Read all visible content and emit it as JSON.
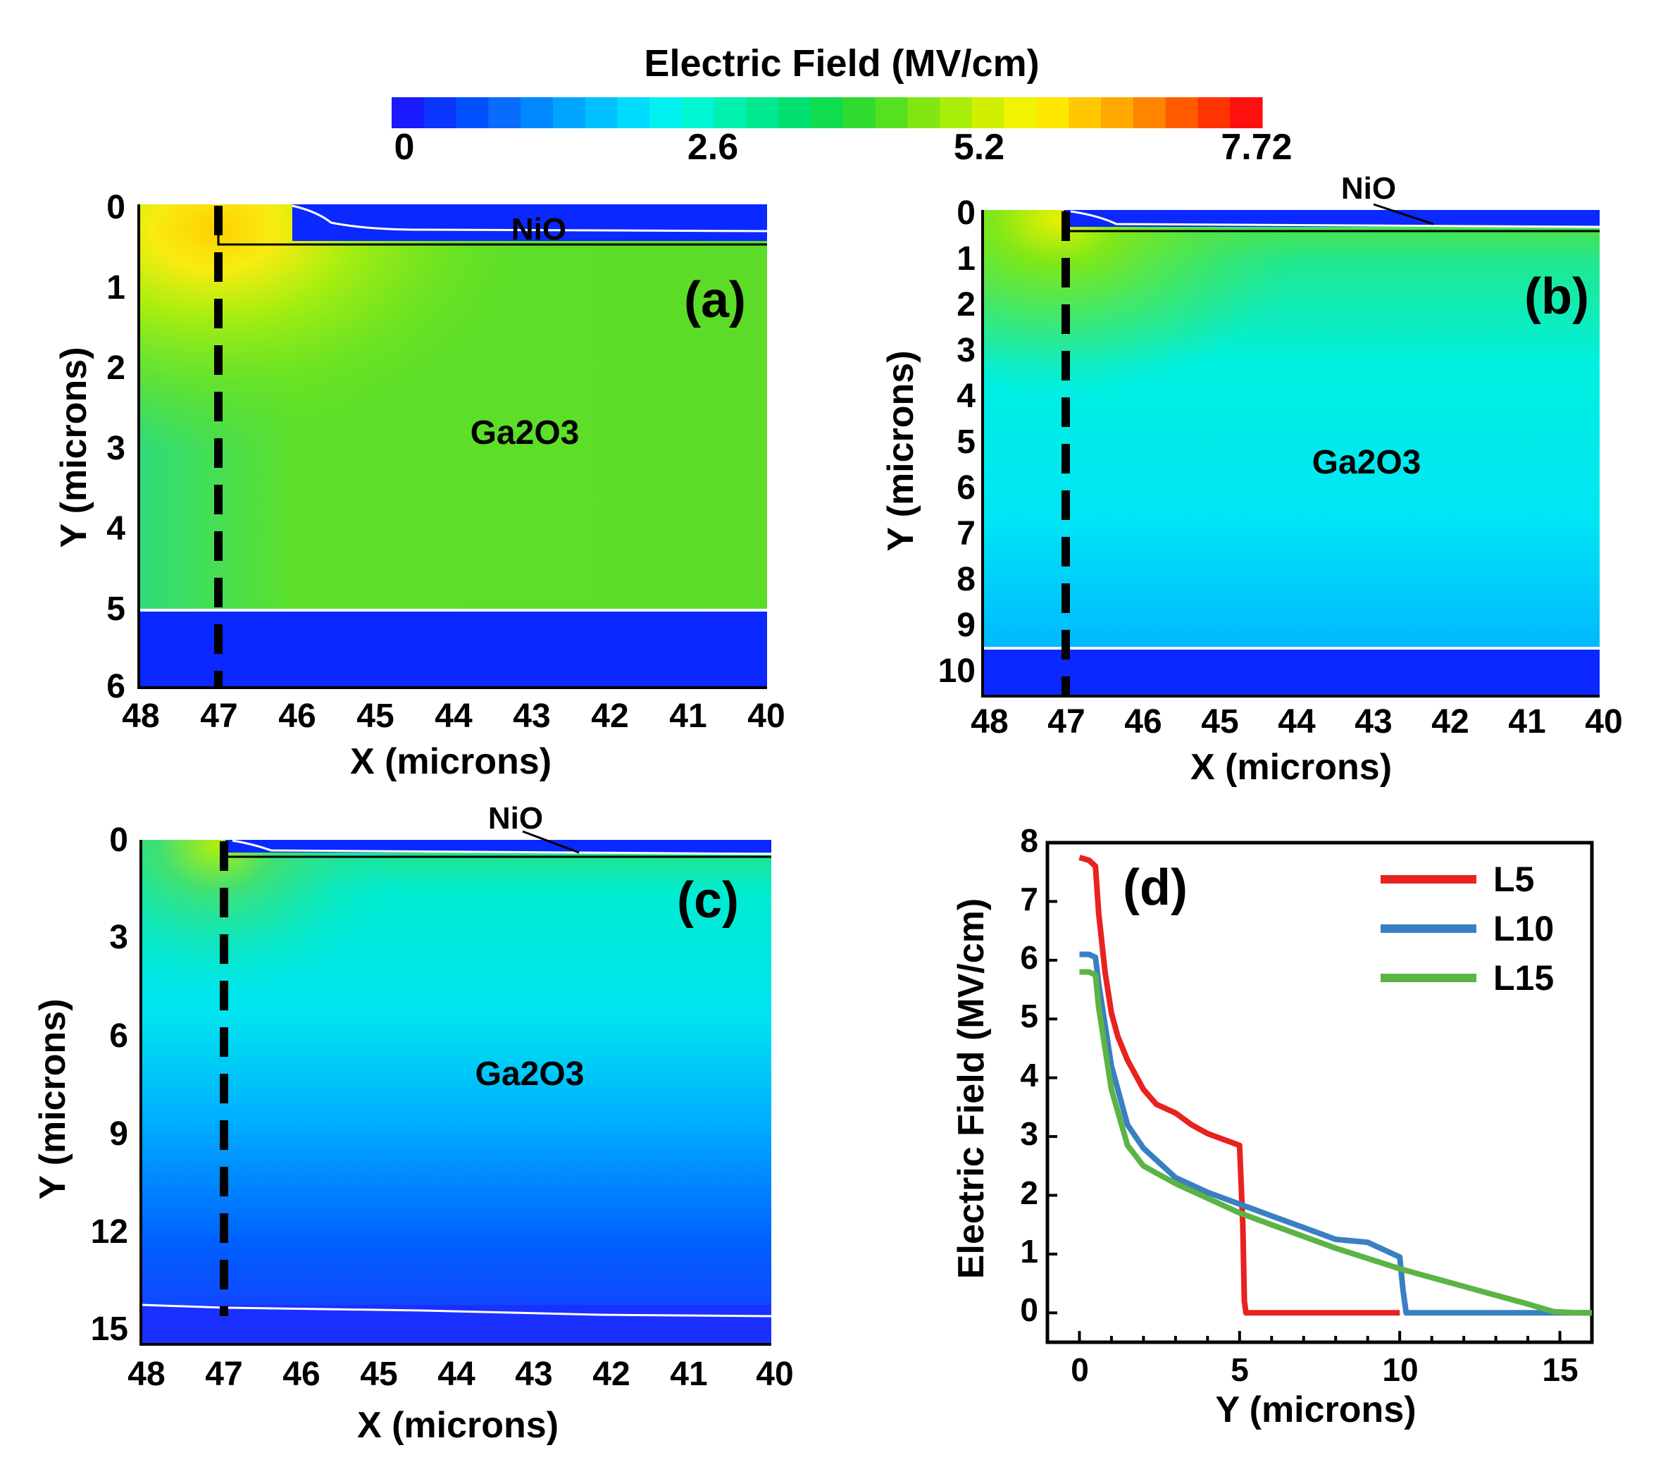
{
  "colorbar": {
    "title": "Electric Field (MV/cm)",
    "ticks": [
      "0",
      "2.6",
      "5.2",
      "7.72"
    ],
    "colors": [
      "#1a1aff",
      "#0a35ff",
      "#0050ff",
      "#0a6cff",
      "#0088ff",
      "#00a4ff",
      "#00c0ff",
      "#00dcff",
      "#00f2f0",
      "#00f5d2",
      "#00f0b0",
      "#00e890",
      "#00e070",
      "#10dc50",
      "#30dc30",
      "#55e020",
      "#80e810",
      "#a8ee08",
      "#d0f000",
      "#f0f400",
      "#ffe800",
      "#ffc800",
      "#ffa800",
      "#ff8400",
      "#ff5c00",
      "#ff3400",
      "#ff1010"
    ]
  },
  "chart_data": [
    {
      "type": "heatmap",
      "panel_label": "(a)",
      "xlabel": "X (microns)",
      "ylabel": "Y (microns)",
      "x_ticks": [
        "48",
        "47",
        "46",
        "45",
        "44",
        "43",
        "42",
        "41",
        "40"
      ],
      "y_ticks": [
        "0",
        "1",
        "2",
        "3",
        "4",
        "5",
        "6"
      ],
      "xlim": [
        48,
        40
      ],
      "ylim": [
        0,
        6
      ],
      "material_labels": [
        "NiO",
        "Ga2O3"
      ],
      "dashed_cut_x": 47,
      "nio_thickness": 0.5,
      "ga2o3_bottom": 5.05,
      "peak_field_color": "#ffd000",
      "bulk_color": "#5ee02a",
      "substrate_color": "#0a28ff",
      "nio_color": "#0a28ff"
    },
    {
      "type": "heatmap",
      "panel_label": "(b)",
      "xlabel": "X (microns)",
      "ylabel": "Y (microns)",
      "x_ticks": [
        "48",
        "47",
        "46",
        "45",
        "44",
        "43",
        "42",
        "41",
        "40"
      ],
      "y_ticks": [
        "0",
        "1",
        "2",
        "3",
        "4",
        "5",
        "6",
        "7",
        "8",
        "9",
        "10"
      ],
      "xlim": [
        48,
        40
      ],
      "ylim": [
        0,
        10.5
      ],
      "material_labels": [
        "NiO",
        "Ga2O3"
      ],
      "dashed_cut_x": 47,
      "nio_thickness": 0.4,
      "ga2o3_bottom": 9.55,
      "top_color": "#60e028",
      "bulk_color": "#00f0e8",
      "bottom_color": "#00c8ff",
      "substrate_color": "#0a28ff",
      "nio_color": "#0a28ff"
    },
    {
      "type": "heatmap",
      "panel_label": "(c)",
      "xlabel": "X (microns)",
      "ylabel": "Y (microns)",
      "x_ticks": [
        "48",
        "47",
        "46",
        "45",
        "44",
        "43",
        "42",
        "41",
        "40"
      ],
      "y_ticks": [
        "0",
        "3",
        "6",
        "9",
        "12",
        "15"
      ],
      "xlim": [
        48,
        40
      ],
      "ylim": [
        0,
        15.5
      ],
      "material_labels": [
        "NiO",
        "Ga2O3"
      ],
      "dashed_cut_x": 47,
      "nio_thickness": 0.4,
      "ga2o3_bottom": 14.6,
      "top_color": "#30e060",
      "mid_color": "#00e8e0",
      "bottom_color": "#0050ff",
      "substrate_color": "#1a30ff",
      "nio_color": "#0a28ff"
    },
    {
      "type": "line",
      "panel_label": "(d)",
      "xlabel": "Y (microns)",
      "ylabel": "Electric Field (MV/cm)",
      "x_ticks": [
        "0",
        "5",
        "10",
        "15"
      ],
      "y_ticks": [
        "0",
        "1",
        "2",
        "3",
        "4",
        "5",
        "6",
        "7",
        "8"
      ],
      "xlim": [
        -1,
        16
      ],
      "ylim": [
        -0.5,
        8
      ],
      "legend_position": "top-right",
      "series": [
        {
          "name": "L5",
          "color": "#e8221e",
          "x": [
            0.0,
            0.3,
            0.5,
            0.6,
            0.8,
            1.0,
            1.2,
            1.5,
            2.0,
            2.4,
            3.0,
            3.5,
            4.0,
            4.5,
            5.0,
            5.1,
            5.15,
            5.2,
            7.0,
            9.0,
            10.0
          ],
          "y": [
            7.75,
            7.7,
            7.6,
            6.8,
            5.8,
            5.1,
            4.7,
            4.3,
            3.8,
            3.55,
            3.4,
            3.2,
            3.05,
            2.95,
            2.85,
            1.5,
            0.2,
            0.0,
            0.0,
            0.0,
            0.0
          ]
        },
        {
          "name": "L10",
          "color": "#3a7fc2",
          "x": [
            0.0,
            0.3,
            0.5,
            0.6,
            0.8,
            1.0,
            1.5,
            2.0,
            3.0,
            4.0,
            5.0,
            6.0,
            7.0,
            8.0,
            9.0,
            10.0,
            10.1,
            10.2,
            12.0,
            14.0,
            16.0
          ],
          "y": [
            6.1,
            6.1,
            6.05,
            5.6,
            4.9,
            4.2,
            3.2,
            2.8,
            2.3,
            2.05,
            1.85,
            1.65,
            1.45,
            1.25,
            1.2,
            0.95,
            0.4,
            0.0,
            0.0,
            0.0,
            0.0
          ]
        },
        {
          "name": "L15",
          "color": "#5bb445",
          "x": [
            0.0,
            0.3,
            0.5,
            0.6,
            0.8,
            1.0,
            1.5,
            2.0,
            3.0,
            4.0,
            5.0,
            6.0,
            8.0,
            10.0,
            12.0,
            14.0,
            14.8,
            15.5,
            16.0
          ],
          "y": [
            5.8,
            5.8,
            5.75,
            5.2,
            4.5,
            3.8,
            2.85,
            2.5,
            2.2,
            1.95,
            1.7,
            1.5,
            1.1,
            0.75,
            0.45,
            0.15,
            0.02,
            0.0,
            0.0
          ]
        }
      ]
    }
  ]
}
